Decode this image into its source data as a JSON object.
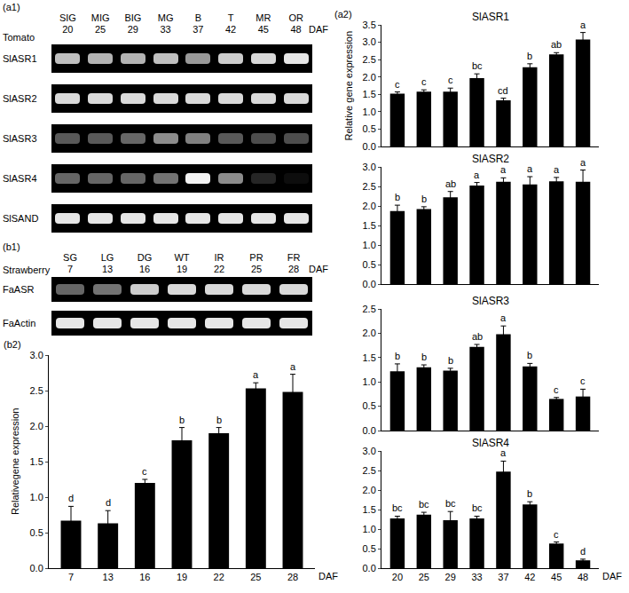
{
  "gels": [
    {
      "panel": "(a1)",
      "species": "Tomato",
      "stages": [
        "SIG",
        "MIG",
        "BIG",
        "MG",
        "B",
        "T",
        "MR",
        "OR"
      ],
      "days": [
        "20",
        "25",
        "29",
        "33",
        "37",
        "42",
        "45",
        "48"
      ],
      "unit": "DAF",
      "rows": [
        {
          "name": "SlASR1",
          "intensity": [
            0.75,
            0.7,
            0.7,
            0.75,
            0.6,
            0.8,
            0.85,
            0.9
          ]
        },
        {
          "name": "SlASR2",
          "intensity": [
            0.85,
            0.85,
            0.85,
            0.85,
            0.85,
            0.85,
            0.85,
            0.85
          ]
        },
        {
          "name": "SlASR3",
          "intensity": [
            0.35,
            0.35,
            0.4,
            0.55,
            0.5,
            0.35,
            0.3,
            0.3
          ]
        },
        {
          "name": "SlASR4",
          "intensity": [
            0.4,
            0.4,
            0.4,
            0.45,
            0.95,
            0.55,
            0.15,
            0.05
          ]
        },
        {
          "name": "SlSAND",
          "intensity": [
            0.9,
            0.9,
            0.9,
            0.9,
            0.9,
            0.9,
            0.9,
            0.9
          ]
        }
      ]
    },
    {
      "panel": "(b1)",
      "species": "Strawberry",
      "stages": [
        "SG",
        "LG",
        "DG",
        "WT",
        "IR",
        "PR",
        "FR"
      ],
      "days": [
        "7",
        "13",
        "16",
        "19",
        "22",
        "25",
        "28"
      ],
      "unit": "DAF",
      "rows": [
        {
          "name": "FaASR",
          "intensity": [
            0.4,
            0.45,
            0.8,
            0.85,
            0.85,
            0.85,
            0.85
          ]
        },
        {
          "name": "FaActin",
          "intensity": [
            0.9,
            0.9,
            0.9,
            0.9,
            0.9,
            0.9,
            0.9
          ]
        }
      ]
    }
  ],
  "chart_data": [
    {
      "panel": "(b2)",
      "type": "bar",
      "y_label": "Relativegene expression",
      "x_label": "DAF",
      "categories": [
        "7",
        "13",
        "16",
        "19",
        "22",
        "25",
        "28"
      ],
      "values": [
        0.67,
        0.63,
        1.2,
        1.8,
        1.9,
        2.53,
        2.48
      ],
      "errors": [
        0.2,
        0.18,
        0.05,
        0.18,
        0.08,
        0.08,
        0.25
      ],
      "letters": [
        "d",
        "d",
        "c",
        "b",
        "b",
        "a",
        "a"
      ],
      "color": "#000000",
      "ylim": [
        0,
        3
      ],
      "yticks": [
        {
          "value": 0,
          "label": "0.0"
        },
        {
          "value": 0.5,
          "label": "0.5"
        },
        {
          "value": 1,
          "label": "1.0"
        },
        {
          "value": 1.5,
          "label": "1.5"
        },
        {
          "value": 2,
          "label": "2.0"
        },
        {
          "value": 2.5,
          "label": "2.5"
        },
        {
          "value": 3,
          "label": "3.0"
        }
      ]
    },
    {
      "panel": "(a2)",
      "type": "bar",
      "title": "SlASR1",
      "y_label": "Relative gene expression",
      "tick_labels": "y",
      "categories": [
        "20",
        "25",
        "29",
        "33",
        "37",
        "42",
        "45",
        "48"
      ],
      "values": [
        1.52,
        1.58,
        1.58,
        1.97,
        1.33,
        2.28,
        2.65,
        3.08
      ],
      "errors": [
        0.05,
        0.05,
        0.1,
        0.12,
        0.06,
        0.1,
        0.05,
        0.2
      ],
      "letters": [
        "c",
        "c",
        "c",
        "bc",
        "cd",
        "b",
        "ab",
        "a"
      ],
      "color": "#000000",
      "ylim": [
        0,
        3.5
      ],
      "yticks": [
        {
          "value": 0,
          "label": "0.0"
        },
        {
          "value": 0.5,
          "label": "0.5"
        },
        {
          "value": 1,
          "label": "1.0"
        },
        {
          "value": 1.5,
          "label": "1.5"
        },
        {
          "value": 2,
          "label": "2.0"
        },
        {
          "value": 2.5,
          "label": "2.5"
        },
        {
          "value": 3,
          "label": "3.0"
        },
        {
          "value": 3.5,
          "label": "3.5"
        }
      ]
    },
    {
      "type": "bar",
      "title": "SlASR2",
      "tick_labels": "y",
      "categories": [
        "20",
        "25",
        "29",
        "33",
        "37",
        "42",
        "45",
        "48"
      ],
      "values": [
        1.87,
        1.92,
        2.22,
        2.52,
        2.62,
        2.55,
        2.63,
        2.62
      ],
      "errors": [
        0.15,
        0.06,
        0.15,
        0.08,
        0.1,
        0.2,
        0.1,
        0.3
      ],
      "letters": [
        "b",
        "b",
        "ab",
        "a",
        "a",
        "a",
        "a",
        "a"
      ],
      "color": "#000000",
      "ylim": [
        0,
        3
      ],
      "yticks": [
        {
          "value": 0,
          "label": "0.0"
        },
        {
          "value": 0.5,
          "label": "0.5"
        },
        {
          "value": 1,
          "label": "1.0"
        },
        {
          "value": 1.5,
          "label": "1.5"
        },
        {
          "value": 2,
          "label": "2.0"
        },
        {
          "value": 2.5,
          "label": "2.5"
        },
        {
          "value": 3,
          "label": "3.0"
        }
      ]
    },
    {
      "type": "bar",
      "title": "SlASR3",
      "tick_labels": "y",
      "categories": [
        "20",
        "25",
        "29",
        "33",
        "37",
        "42",
        "45",
        "48"
      ],
      "values": [
        1.22,
        1.3,
        1.23,
        1.72,
        1.98,
        1.32,
        0.65,
        0.7
      ],
      "errors": [
        0.15,
        0.05,
        0.05,
        0.05,
        0.17,
        0.06,
        0.03,
        0.15
      ],
      "letters": [
        "b",
        "b",
        "b",
        "ab",
        "a",
        "b",
        "c",
        "c"
      ],
      "color": "#000000",
      "ylim": [
        0,
        2.5
      ],
      "yticks": [
        {
          "value": 0,
          "label": "0.0"
        },
        {
          "value": 0.5,
          "label": "0.5"
        },
        {
          "value": 1,
          "label": "1.0"
        },
        {
          "value": 1.5,
          "label": "1.5"
        },
        {
          "value": 2,
          "label": "2.0"
        },
        {
          "value": 2.5,
          "label": "2.5"
        }
      ]
    },
    {
      "type": "bar",
      "title": "SlASR4",
      "x_label": "DAF",
      "categories": [
        "20",
        "25",
        "29",
        "33",
        "37",
        "42",
        "45",
        "48"
      ],
      "values": [
        1.27,
        1.37,
        1.23,
        1.27,
        2.47,
        1.63,
        0.63,
        0.2
      ],
      "errors": [
        0.06,
        0.06,
        0.22,
        0.06,
        0.27,
        0.07,
        0.04,
        0.03
      ],
      "letters": [
        "bc",
        "bc",
        "bc",
        "bc",
        "a",
        "b",
        "c",
        "d"
      ],
      "color": "#000000",
      "ylim": [
        0,
        3
      ],
      "yticks": [
        {
          "value": 0,
          "label": "0.0"
        },
        {
          "value": 0.5,
          "label": "0.5"
        },
        {
          "value": 1,
          "label": "1.0"
        },
        {
          "value": 1.5,
          "label": "1.5"
        },
        {
          "value": 2,
          "label": "2.0"
        },
        {
          "value": 2.5,
          "label": "2.5"
        },
        {
          "value": 3,
          "label": "3.0"
        }
      ]
    }
  ]
}
